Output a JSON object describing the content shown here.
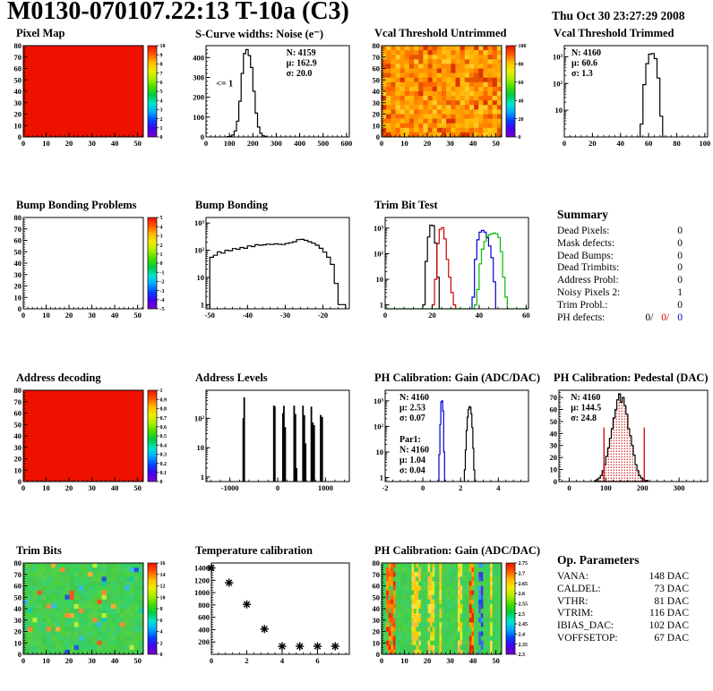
{
  "header": {
    "title": "M0130-070107.22:13 T-10a (C3)",
    "date": "Thu Oct 30 23:27:29 2008"
  },
  "palettes": {
    "rainbow": [
      "#7700cc",
      "#4400ee",
      "#0044ff",
      "#00aaff",
      "#00e6cc",
      "#00cc44",
      "#44dd00",
      "#aaee00",
      "#eeee00",
      "#ffbb00",
      "#ff5500",
      "#ee1100"
    ],
    "solid_red": "#ee1100",
    "vcal_noise": [
      "#ff9900",
      "#ff8800",
      "#ffaa00",
      "#ff7700",
      "#e65500",
      "#ffbb11",
      "#ff6600",
      "#ffcc22",
      "#dd3300",
      "#ffaa00",
      "#ff9900",
      "#ff8800",
      "#ffbb00"
    ],
    "green_base": [
      "#3ecc4e",
      "#46c851",
      "#35d165",
      "#50cf3e",
      "#47cc58",
      "#3bcf72",
      "#44d246",
      "#52d24a"
    ],
    "green_rare": [
      "#ffaa33",
      "#ff8833",
      "#33bbee",
      "#2255dd",
      "#bbee33",
      "#11ccaa",
      "#ee5522"
    ],
    "hot": [
      "#ff6600",
      "#ff4411",
      "#ff8800",
      "#ffaa00",
      "#ee2200"
    ],
    "warm": [
      "#ffcc00",
      "#ffdd44",
      "#e6cc22",
      "#ffbb33",
      "#ddee22"
    ],
    "cold": [
      "#2244dd",
      "#3366ee",
      "#5533cc",
      "#3399ff"
    ]
  },
  "chart_data": [
    {
      "title": "Pixel Map",
      "type": "heatmap",
      "render": "map",
      "xlim": [
        0,
        52.5
      ],
      "ylim": [
        0,
        80
      ],
      "xticks": [
        0,
        10,
        20,
        30,
        40,
        50
      ],
      "yticks": [
        0,
        10,
        20,
        30,
        40,
        50,
        60,
        70,
        80
      ],
      "fill": {
        "kind": "solid"
      },
      "cbar": [
        "10",
        "9",
        "8",
        "7",
        "6",
        "5",
        "4",
        "3",
        "2",
        "1",
        "0"
      ]
    },
    {
      "title": "S-Curve widths: Noise (e⁻)",
      "type": "bar",
      "render": "hist",
      "xlim": [
        0,
        612
      ],
      "ylim": [
        0,
        460
      ],
      "xticks": [
        0,
        100,
        200,
        300,
        400,
        500,
        600
      ],
      "yticks": [
        0,
        100,
        200,
        300,
        400
      ],
      "series": [
        {
          "color": "#000000",
          "x0": 90,
          "bw": 10,
          "counts": [
            2,
            4,
            10,
            30,
            80,
            180,
            320,
            420,
            440,
            410,
            350,
            230,
            120,
            50,
            18,
            6,
            2
          ]
        }
      ],
      "stats": [
        {
          "x": 0.56,
          "y": 0.02,
          "lines": [
            {
              "t": "N: 4159",
              "c": "#000000"
            },
            {
              "t": "μ: 162.9",
              "c": "#000000"
            },
            {
              "t": "σ: 20.0",
              "c": "#000000"
            }
          ]
        }
      ],
      "labels": [
        {
          "x": 0.07,
          "y": 0.36,
          "t": "<= 1",
          "c": "#000000"
        }
      ]
    },
    {
      "title": "Vcal Threshold Untrimmed",
      "type": "heatmap",
      "render": "map",
      "xlim": [
        0,
        52.5
      ],
      "ylim": [
        0,
        80
      ],
      "xticks": [
        0,
        10,
        20,
        30,
        40,
        50
      ],
      "yticks": [
        0,
        10,
        20,
        30,
        40,
        50,
        60,
        70,
        80
      ],
      "fill": {
        "kind": "noise",
        "palette": "vcal_noise",
        "nx": 26,
        "ny": 20
      },
      "cbar": [
        "100",
        "80",
        "60",
        "40",
        "20",
        "0"
      ]
    },
    {
      "title": "Vcal Threshold Trimmed",
      "type": "bar",
      "render": "hist",
      "ylog": true,
      "xlim": [
        0,
        102
      ],
      "ylim": [
        1,
        2600
      ],
      "xticks": [
        0,
        20,
        40,
        60,
        80,
        100
      ],
      "ylabels": [
        [
          10,
          "10"
        ],
        [
          100,
          "10²"
        ],
        [
          1000,
          "10³"
        ]
      ],
      "series": [
        {
          "color": "#000000",
          "x0": 54,
          "bw": 2,
          "counts": [
            3,
            90,
            550,
            1250,
            1320,
            850,
            160,
            6
          ]
        }
      ],
      "stats": [
        {
          "x": 0.05,
          "y": 0.02,
          "lines": [
            {
              "t": "N: 4160",
              "c": "#000000"
            },
            {
              "t": "μ: 60.6",
              "c": "#000000"
            },
            {
              "t": "σ:  1.3",
              "c": "#000000"
            }
          ]
        }
      ]
    },
    {
      "title": "Bump Bonding Problems",
      "type": "heatmap",
      "render": "map",
      "xlim": [
        0,
        52.5
      ],
      "ylim": [
        0,
        80
      ],
      "xticks": [
        0,
        10,
        20,
        30,
        40,
        50
      ],
      "yticks": [
        0,
        10,
        20,
        30,
        40,
        50,
        60,
        70,
        80
      ],
      "fill": {
        "kind": "none"
      },
      "cbar": [
        "5",
        "4",
        "3",
        "2",
        "1",
        "0",
        "-1",
        "-2",
        "-3",
        "-4",
        "-5"
      ]
    },
    {
      "title": "Bump Bonding",
      "type": "bar",
      "render": "hist",
      "ylog": true,
      "xlim": [
        -51,
        -13
      ],
      "ylim": [
        0.7,
        1600
      ],
      "xticks": [
        -50,
        -40,
        -30,
        -20
      ],
      "ylabels": [
        [
          1,
          "1"
        ],
        [
          10,
          "10"
        ],
        [
          100,
          "10²"
        ],
        [
          1000,
          "10³"
        ]
      ],
      "series": [
        {
          "color": "#000000",
          "x0": -50,
          "bw": 1,
          "counts": [
            55,
            65,
            88,
            78,
            100,
            96,
            115,
            108,
            126,
            118,
            145,
            136,
            160,
            152,
            158,
            168,
            162,
            172,
            166,
            162,
            178,
            188,
            205,
            245,
            252,
            232,
            205,
            182,
            152,
            118,
            85,
            55,
            30,
            6,
            1,
            1
          ]
        }
      ]
    },
    {
      "title": "Trim Bit Test",
      "type": "bar",
      "render": "hist",
      "ylog": true,
      "xlim": [
        0,
        61
      ],
      "ylim": [
        0.7,
        2600
      ],
      "xticks": [
        0,
        20,
        40,
        60
      ],
      "ylabels": [
        [
          1,
          "1"
        ],
        [
          10,
          "10"
        ],
        [
          100,
          "10²"
        ],
        [
          1000,
          "10³"
        ]
      ],
      "series": [
        {
          "color": "#000000",
          "x0": 16,
          "bw": 1,
          "counts": [
            1,
            50,
            450,
            1300,
            1250,
            260,
            12
          ]
        },
        {
          "color": "#cc0000",
          "x0": 20,
          "bw": 1,
          "counts": [
            1,
            10,
            250,
            900,
            1050,
            380,
            60,
            12,
            3,
            1
          ]
        },
        {
          "color": "#0000cc",
          "x0": 37,
          "bw": 1,
          "counts": [
            2,
            60,
            350,
            700,
            820,
            700,
            420,
            200,
            70,
            8
          ]
        },
        {
          "color": "#00bb00",
          "x0": 38,
          "bw": 1,
          "base": true,
          "counts": [
            1,
            4,
            40,
            150,
            300,
            480,
            560,
            600,
            640,
            600,
            430,
            120,
            12,
            2
          ]
        }
      ]
    },
    {
      "title": "Address decoding",
      "type": "heatmap",
      "render": "map",
      "xlim": [
        0,
        52.5
      ],
      "ylim": [
        0,
        80
      ],
      "xticks": [
        0,
        10,
        20,
        30,
        40,
        50
      ],
      "yticks": [
        0,
        10,
        20,
        30,
        40,
        50,
        60,
        70,
        80
      ],
      "fill": {
        "kind": "solid"
      },
      "cbar": [
        "1",
        "0.9",
        "0.8",
        "0.7",
        "0.6",
        "0.5",
        "0.4",
        "0.3",
        "0.2",
        "0.1",
        "0"
      ]
    },
    {
      "title": "Address Levels",
      "type": "bar",
      "render": "spikes",
      "ylog": true,
      "xlim": [
        -1500,
        1500
      ],
      "ylim": [
        0.7,
        900
      ],
      "xticks": [
        -1000,
        0,
        1000
      ],
      "ylabels": [
        [
          1,
          "1"
        ],
        [
          10,
          "10"
        ],
        [
          100,
          "10²"
        ]
      ],
      "spikes": [
        [
          -720,
          100
        ],
        [
          -700,
          520
        ],
        [
          -80,
          270
        ],
        [
          -60,
          255
        ],
        [
          110,
          150
        ],
        [
          130,
          265
        ],
        [
          158,
          50
        ],
        [
          345,
          270
        ],
        [
          372,
          140
        ],
        [
          395,
          2
        ],
        [
          530,
          268
        ],
        [
          558,
          128
        ],
        [
          584,
          14
        ],
        [
          705,
          250
        ],
        [
          735,
          72
        ],
        [
          764,
          58
        ],
        [
          900,
          130
        ],
        [
          932,
          112
        ]
      ]
    },
    {
      "title": "PH Calibration: Gain (ADC/DAC)",
      "type": "bar",
      "render": "hist",
      "ylog": true,
      "xlim": [
        -2,
        5.6
      ],
      "ylim": [
        0.7,
        2600
      ],
      "xticks": [
        -2,
        0,
        2,
        4
      ],
      "ylabels": [
        [
          1,
          "1"
        ],
        [
          10,
          "10"
        ],
        [
          100,
          "10²"
        ],
        [
          1000,
          "10³"
        ]
      ],
      "series": [
        {
          "color": "#0000cc",
          "x0": 0.85,
          "bw": 0.05,
          "counts": [
            8,
            120,
            900,
            1000,
            400,
            10
          ]
        },
        {
          "color": "#000000",
          "x0": 2.2,
          "bw": 0.05,
          "counts": [
            2,
            12,
            70,
            230,
            460,
            600,
            560,
            310,
            90,
            14,
            2
          ]
        }
      ],
      "stats": [
        {
          "x": 0.1,
          "y": 0.02,
          "lines": [
            {
              "t": "N: 4160",
              "c": "#000000"
            },
            {
              "t": "μ: 2.53",
              "c": "#000000"
            },
            {
              "t": "σ: 0.07",
              "c": "#000000"
            }
          ]
        },
        {
          "x": 0.1,
          "y": 0.48,
          "lines": [
            {
              "t": "Par1:",
              "c": "#0000cc"
            },
            {
              "t": "N: 4160",
              "c": "#0000cc"
            },
            {
              "t": "μ: 1.04",
              "c": "#0000cc"
            },
            {
              "t": "σ: 0.04",
              "c": "#0000cc"
            }
          ]
        }
      ]
    },
    {
      "title": "PH Calibration: Pedestal (DAC)",
      "type": "bar",
      "render": "hist",
      "xlim": [
        -28,
        378
      ],
      "ylim": [
        0,
        76
      ],
      "xticks": [
        0,
        100,
        200,
        300
      ],
      "yticks": [
        0,
        10,
        20,
        30,
        40,
        50,
        60,
        70
      ],
      "ml": 24,
      "series": [
        {
          "color": "#000000",
          "fill": "dots",
          "x0": 70,
          "bw": 5,
          "counts": [
            1,
            2,
            3,
            5,
            9,
            14,
            21,
            28,
            36,
            44,
            53,
            60,
            68,
            73,
            66,
            70,
            63,
            56,
            44,
            38,
            30,
            22,
            14,
            9,
            5,
            3,
            2,
            1,
            1
          ]
        }
      ],
      "vlines": [
        {
          "x": 95,
          "h": 45,
          "c": "#cc0000"
        },
        {
          "x": 205,
          "h": 45,
          "c": "#cc0000"
        }
      ],
      "stats": [
        {
          "x": 0.08,
          "y": 0.02,
          "lines": [
            {
              "t": "N: 4160",
              "c": "#000000"
            },
            {
              "t": "μ: 144.5",
              "c": "#cc0000"
            },
            {
              "t": "σ: 24.8",
              "c": "#cc0000"
            }
          ]
        }
      ]
    },
    {
      "title": "Trim Bits",
      "type": "heatmap",
      "render": "map",
      "xlim": [
        0,
        52.5
      ],
      "ylim": [
        0,
        80
      ],
      "xticks": [
        0,
        10,
        20,
        30,
        40,
        50
      ],
      "yticks": [
        0,
        10,
        20,
        30,
        40,
        50,
        60,
        70,
        80
      ],
      "fill": {
        "kind": "noise",
        "palette": "green_base",
        "rare": "green_rare",
        "rare_p": 0.07,
        "nx": 26,
        "ny": 20
      },
      "cbar": [
        "16",
        "14",
        "12",
        "10",
        "8",
        "6",
        "4",
        "2",
        "0"
      ]
    },
    {
      "title": "Temperature calibration",
      "type": "scatter",
      "render": "scatter",
      "xlim": [
        0,
        7.8
      ],
      "ylim": [
        0,
        1480
      ],
      "xticks": [
        0,
        2,
        4,
        6
      ],
      "yticks": [
        200,
        400,
        600,
        800,
        1000,
        1200,
        1400
      ],
      "ml": 36,
      "points": [
        [
          0,
          1400
        ],
        [
          1,
          1160
        ],
        [
          2,
          810
        ],
        [
          3,
          410
        ],
        [
          4,
          130
        ],
        [
          5,
          130
        ],
        [
          6,
          130
        ],
        [
          7,
          130
        ]
      ]
    },
    {
      "title": "PH Calibration: Gain (ADC/DAC)",
      "type": "heatmap",
      "render": "map",
      "xlim": [
        0,
        52.5
      ],
      "ylim": [
        0,
        80
      ],
      "xticks": [
        0,
        10,
        20,
        30,
        40,
        50
      ],
      "yticks": [
        0,
        10,
        20,
        30,
        40,
        50,
        60,
        70,
        80
      ],
      "fill": {
        "kind": "stripes",
        "nx": 52,
        "ny": 20,
        "hot": [
          2,
          3,
          4,
          5,
          38,
          39
        ],
        "warm": [
          13,
          14,
          15,
          16,
          20,
          21,
          22,
          25,
          33,
          34,
          47
        ],
        "cold": [
          42,
          43
        ]
      },
      "cbar": [
        "2.75",
        "2.7",
        "2.65",
        "2.6",
        "2.55",
        "2.5",
        "2.45",
        "2.4",
        "2.35",
        "2.3"
      ]
    }
  ],
  "summary": {
    "title": "Summary",
    "rows": [
      {
        "label": "Dead Pixels:",
        "value": "0"
      },
      {
        "label": "Mask defects:",
        "value": "0"
      },
      {
        "label": "Dead Bumps:",
        "value": "0"
      },
      {
        "label": "Dead Trimbits:",
        "value": "0"
      },
      {
        "label": "Address Probl:",
        "value": "0"
      },
      {
        "label": "Noisy Pixels 2:",
        "value": "1"
      },
      {
        "label": "Trim Probl.:",
        "value": "0"
      }
    ],
    "ph_row": {
      "label": "PH defects:",
      "values": [
        {
          "text": "0/",
          "color": "#000000"
        },
        {
          "text": "0/",
          "color": "#cc0000"
        },
        {
          "text": "0",
          "color": "#0000cc"
        }
      ]
    }
  },
  "op_params": {
    "title": "Op. Parameters",
    "rows": [
      {
        "label": "VANA:",
        "value": "148 DAC"
      },
      {
        "label": "CALDEL:",
        "value": "73 DAC"
      },
      {
        "label": "VTHR:",
        "value": "81 DAC"
      },
      {
        "label": "VTRIM:",
        "value": "116 DAC"
      },
      {
        "label": "IBIAS_DAC:",
        "value": "102 DAC"
      },
      {
        "label": "VOFFSETOP:",
        "value": "67 DAC"
      }
    ]
  }
}
